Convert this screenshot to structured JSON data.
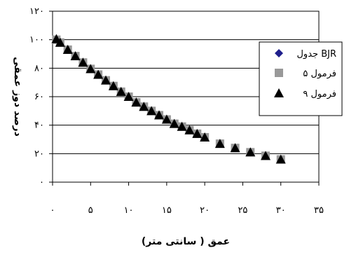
{
  "chart_data": {
    "type": "scatter",
    "xlabel": "عمق ( سانتی متر)",
    "ylabel": "درصد دوز عمقی",
    "xlim": [
      0,
      35
    ],
    "ylim": [
      0,
      120
    ],
    "x_ticks": [
      "۰",
      "۵",
      "۱۰",
      "۱۵",
      "۲۰",
      "۲۵",
      "۳۰",
      "۳۵"
    ],
    "y_ticks": [
      "۰",
      "۲۰",
      "۴۰",
      "۶۰",
      "۸۰",
      "۱۰۰",
      "۱۲۰"
    ],
    "grid": "horizontal",
    "legend_position": "right",
    "series": [
      {
        "name": "جدول BJR",
        "marker": "diamond",
        "color": "#1f1f8c",
        "x": [
          0.5,
          1,
          2,
          3,
          4,
          5,
          6,
          7,
          8,
          9,
          10,
          11,
          12,
          13,
          14,
          15,
          16,
          17,
          18,
          19,
          20,
          22,
          24,
          26,
          28,
          30
        ],
        "y": [
          100,
          98,
          93,
          88.5,
          84,
          79.5,
          75.5,
          71.5,
          67.5,
          63.5,
          60,
          56,
          53,
          50,
          47,
          44,
          41,
          39,
          36.5,
          34,
          31.5,
          27,
          24,
          21,
          18.5,
          16
        ]
      },
      {
        "name": "فرمول ۵",
        "marker": "square",
        "color": "#999999",
        "x": [
          0.5,
          1,
          2,
          3,
          4,
          5,
          6,
          7,
          8,
          9,
          10,
          11,
          12,
          13,
          14,
          15,
          16,
          17,
          18,
          19,
          20,
          22,
          24,
          26,
          28,
          30
        ],
        "y": [
          100,
          98,
          93,
          88.5,
          84,
          79.5,
          75.5,
          71.5,
          67.5,
          63.5,
          60,
          56,
          53,
          50,
          47,
          44,
          41,
          39,
          36.5,
          34,
          31.5,
          27,
          24,
          21,
          18.5,
          16
        ]
      },
      {
        "name": "فرمول ۹",
        "marker": "triangle",
        "color": "#000000",
        "x": [
          0.5,
          1,
          2,
          3,
          4,
          5,
          6,
          7,
          8,
          9,
          10,
          11,
          12,
          13,
          14,
          15,
          16,
          17,
          18,
          19,
          20,
          22,
          24,
          26,
          28,
          30
        ],
        "y": [
          100.5,
          98,
          93,
          88.5,
          84,
          79.5,
          75.5,
          71.5,
          67.5,
          63.5,
          60,
          56,
          53,
          50,
          47,
          44,
          41,
          39,
          36.5,
          34,
          31.5,
          27,
          24,
          21,
          18.5,
          16
        ]
      }
    ]
  }
}
